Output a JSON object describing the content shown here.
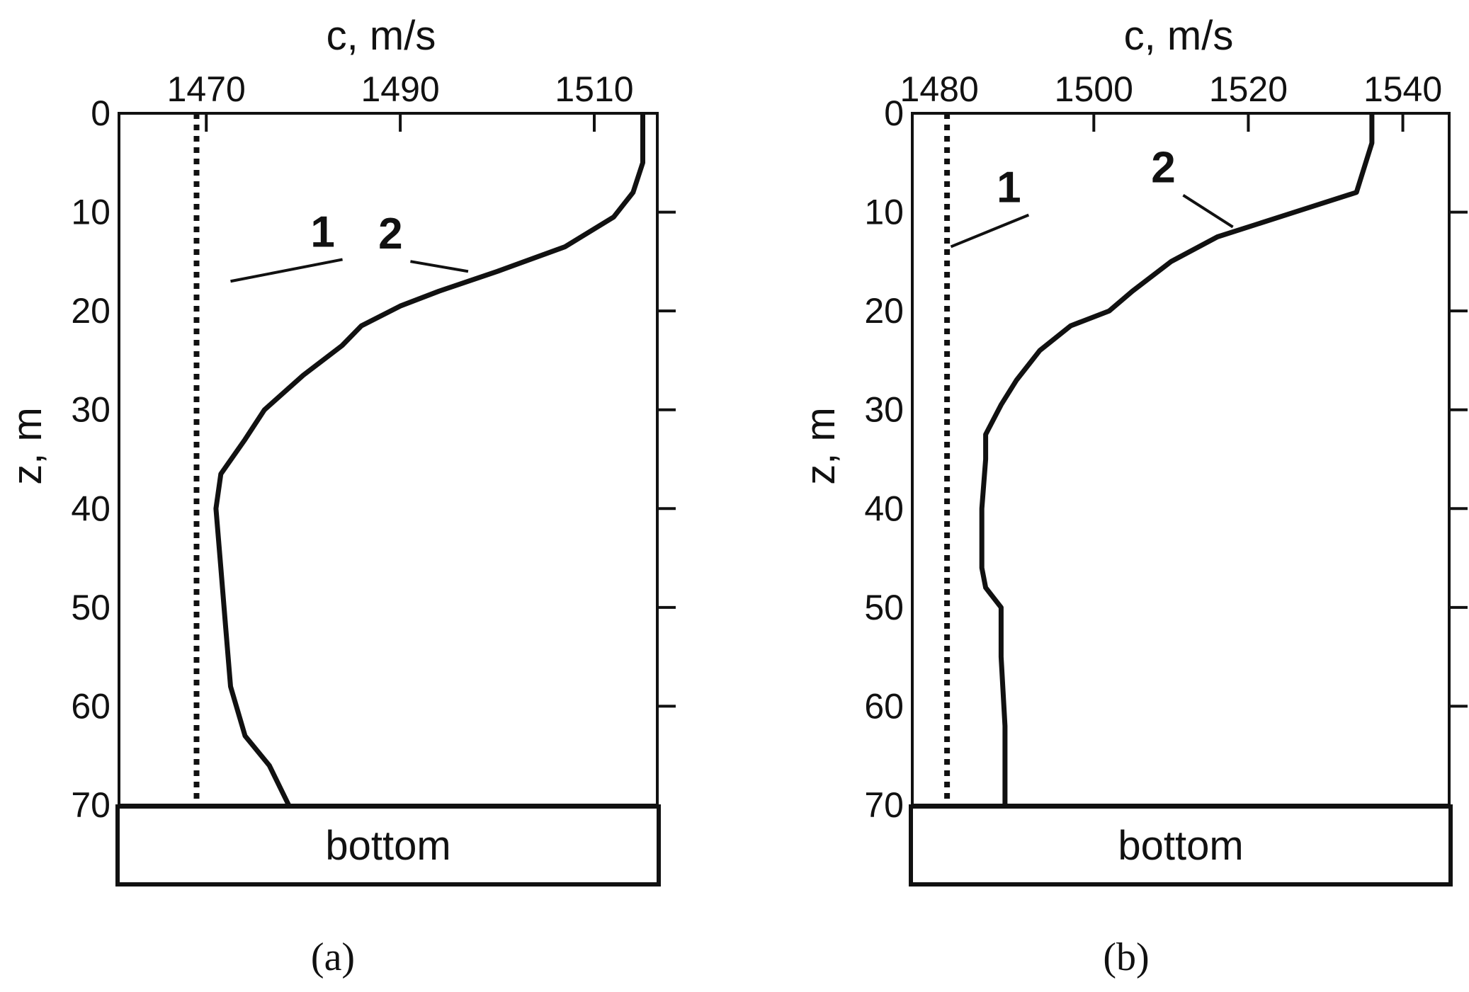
{
  "chart_data": [
    {
      "id": "a",
      "type": "line",
      "orientation": "vertical-profile",
      "caption": "(a)",
      "xlabel": "c, m/s",
      "ylabel": "z, m",
      "xlim": [
        1461,
        1516.5
      ],
      "ylim": [
        0,
        70
      ],
      "xticks": [
        1470,
        1490,
        1510
      ],
      "xtick_labels": [
        "1470",
        "1490",
        "1510"
      ],
      "xtick_marks": [
        1470,
        1490,
        1510
      ],
      "yticks": [
        0,
        10,
        20,
        30,
        40,
        50,
        60,
        70
      ],
      "ytick_labels": [
        "0",
        "10",
        "20",
        "30",
        "40",
        "50",
        "60",
        "70"
      ],
      "bottom_label": "bottom",
      "grid": false,
      "series": [
        {
          "name": "1",
          "style": "dotted",
          "label_at": {
            "c": 1482,
            "z": 13.5
          },
          "pointer_to": {
            "c": 1472.5,
            "z": 17
          },
          "points": [
            [
              1469,
              0
            ],
            [
              1469,
              70
            ]
          ]
        },
        {
          "name": "2",
          "style": "solid",
          "label_at": {
            "c": 1489,
            "z": 13.7
          },
          "pointer_to": {
            "c": 1497,
            "z": 16
          },
          "points": [
            [
              1515,
              0
            ],
            [
              1515,
              5
            ],
            [
              1514,
              8
            ],
            [
              1512,
              10.5
            ],
            [
              1507,
              13.5
            ],
            [
              1500,
              16
            ],
            [
              1494,
              18
            ],
            [
              1490,
              19.5
            ],
            [
              1486,
              21.5
            ],
            [
              1484,
              23.5
            ],
            [
              1480,
              26.5
            ],
            [
              1476,
              30
            ],
            [
              1474,
              33
            ],
            [
              1471.5,
              36.5
            ],
            [
              1471,
              40
            ],
            [
              1471.5,
              46
            ],
            [
              1472,
              52
            ],
            [
              1472.5,
              58
            ],
            [
              1474,
              63
            ],
            [
              1476.5,
              66
            ],
            [
              1478.5,
              70
            ]
          ]
        }
      ]
    },
    {
      "id": "b",
      "type": "line",
      "orientation": "vertical-profile",
      "caption": "(b)",
      "xlabel": "c, m/s",
      "ylabel": "z, m",
      "xlim": [
        1476.5,
        1546
      ],
      "ylim": [
        0,
        70
      ],
      "xticks": [
        1480,
        1500,
        1520,
        1540
      ],
      "xtick_labels": [
        "1480",
        "1500",
        "1520",
        "1540"
      ],
      "xtick_marks": [
        1500,
        1520,
        1540
      ],
      "yticks": [
        0,
        10,
        20,
        30,
        40,
        50,
        60,
        70
      ],
      "ytick_labels": [
        "0",
        "10",
        "20",
        "30",
        "40",
        "50",
        "60",
        "70"
      ],
      "bottom_label": "bottom",
      "grid": false,
      "series": [
        {
          "name": "1",
          "style": "dotted",
          "label_at": {
            "c": 1489,
            "z": 9
          },
          "pointer_to": {
            "c": 1481.5,
            "z": 13.5
          },
          "points": [
            [
              1481,
              0
            ],
            [
              1481,
              70
            ]
          ]
        },
        {
          "name": "2",
          "style": "solid",
          "label_at": {
            "c": 1509,
            "z": 7
          },
          "pointer_to": {
            "c": 1518,
            "z": 11.5
          },
          "points": [
            [
              1536,
              0
            ],
            [
              1536,
              3
            ],
            [
              1534,
              8
            ],
            [
              1526,
              10
            ],
            [
              1516,
              12.5
            ],
            [
              1510,
              15
            ],
            [
              1505,
              18
            ],
            [
              1502,
              20
            ],
            [
              1497,
              21.5
            ],
            [
              1493,
              24
            ],
            [
              1490,
              27
            ],
            [
              1488,
              29.5
            ],
            [
              1486,
              32.5
            ],
            [
              1486,
              35
            ],
            [
              1485.5,
              40
            ],
            [
              1485.5,
              46
            ],
            [
              1486,
              48
            ],
            [
              1488,
              50
            ],
            [
              1488,
              55
            ],
            [
              1488.5,
              62
            ],
            [
              1488.5,
              70
            ]
          ]
        }
      ]
    }
  ]
}
